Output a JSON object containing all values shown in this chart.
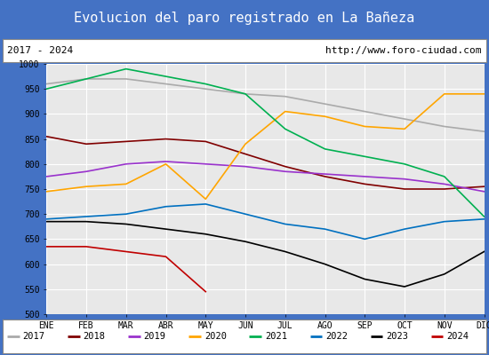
{
  "title": "Evolucion del paro registrado en La Bañeza",
  "title_bg": "#4472c4",
  "subtitle_left": "2017 - 2024",
  "subtitle_right": "http://www.foro-ciudad.com",
  "xlabel_months": [
    "ENE",
    "FEB",
    "MAR",
    "ABR",
    "MAY",
    "JUN",
    "JUL",
    "AGO",
    "SEP",
    "OCT",
    "NOV",
    "DIC"
  ],
  "ylim": [
    500,
    1000
  ],
  "yticks": [
    500,
    550,
    600,
    650,
    700,
    750,
    800,
    850,
    900,
    950,
    1000
  ],
  "series": {
    "2017": {
      "color": "#aaaaaa",
      "data": [
        960,
        970,
        970,
        960,
        950,
        940,
        935,
        920,
        905,
        890,
        875,
        865
      ]
    },
    "2018": {
      "color": "#800000",
      "data": [
        855,
        840,
        845,
        850,
        845,
        820,
        795,
        775,
        760,
        750,
        750,
        755
      ]
    },
    "2019": {
      "color": "#9932cc",
      "data": [
        775,
        785,
        800,
        805,
        800,
        795,
        785,
        780,
        775,
        770,
        760,
        745
      ]
    },
    "2020": {
      "color": "#ffa500",
      "data": [
        745,
        755,
        760,
        800,
        730,
        840,
        905,
        895,
        875,
        870,
        940,
        940
      ]
    },
    "2021": {
      "color": "#00b050",
      "data": [
        950,
        970,
        990,
        975,
        960,
        940,
        870,
        830,
        815,
        800,
        775,
        695
      ]
    },
    "2022": {
      "color": "#0070c0",
      "data": [
        690,
        695,
        700,
        715,
        720,
        700,
        680,
        670,
        650,
        670,
        685,
        690
      ]
    },
    "2023": {
      "color": "#000000",
      "data": [
        685,
        685,
        680,
        670,
        660,
        645,
        625,
        600,
        570,
        555,
        580,
        625
      ]
    },
    "2024": {
      "color": "#c00000",
      "data": [
        635,
        635,
        625,
        615,
        545,
        null,
        null,
        null,
        null,
        null,
        null,
        null
      ]
    }
  },
  "legend_order": [
    "2017",
    "2018",
    "2019",
    "2020",
    "2021",
    "2022",
    "2023",
    "2024"
  ],
  "plot_bg": "#e8e8e8",
  "grid_color": "#ffffff"
}
